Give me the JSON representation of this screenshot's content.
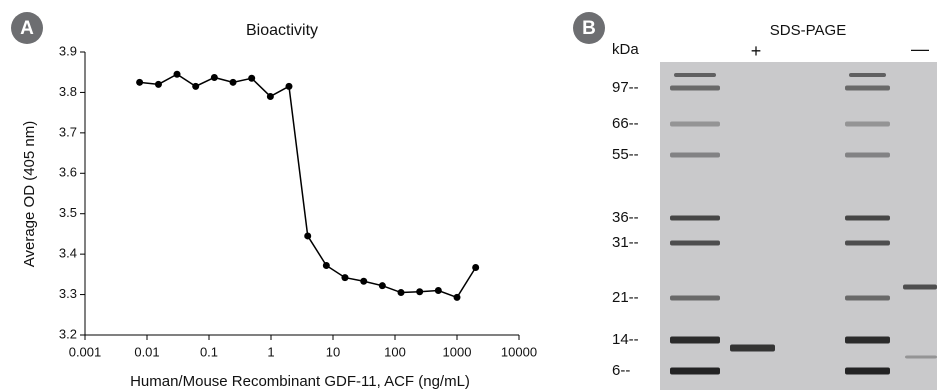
{
  "panel_a": {
    "label": "A",
    "chart_data": {
      "type": "line",
      "title": "Bioactivity",
      "x_label": "Human/Mouse Recombinant GDF-11, ACF (ng/mL)",
      "y_label": "Average OD (405 nm)",
      "x_scale": "log",
      "color": "#000000",
      "x": [
        0.0076,
        0.0153,
        0.0305,
        0.061,
        0.122,
        0.244,
        0.488,
        0.977,
        1.95,
        3.91,
        7.81,
        15.6,
        31.3,
        62.5,
        125,
        250,
        500,
        1000,
        2000
      ],
      "values": [
        3.825,
        3.82,
        3.845,
        3.815,
        3.837,
        3.825,
        3.835,
        3.79,
        3.815,
        3.445,
        3.372,
        3.342,
        3.333,
        3.322,
        3.305,
        3.307,
        3.31,
        3.293,
        3.367
      ],
      "xlim": [
        0.001,
        10000
      ],
      "xticks": [
        0.001,
        0.01,
        0.1,
        1,
        10,
        100,
        1000,
        10000
      ],
      "ylim": [
        3.2,
        3.9
      ],
      "yticks": [
        3.2,
        3.3,
        3.4,
        3.5,
        3.6,
        3.7,
        3.8,
        3.9
      ]
    }
  },
  "panel_b": {
    "label": "B",
    "title": "SDS-PAGE",
    "unit": "kDa",
    "lanes": [
      "+",
      "—"
    ],
    "markers": [
      "97--",
      "66--",
      "55--",
      "36--",
      "31--",
      "21--",
      "14--",
      "6--"
    ]
  }
}
